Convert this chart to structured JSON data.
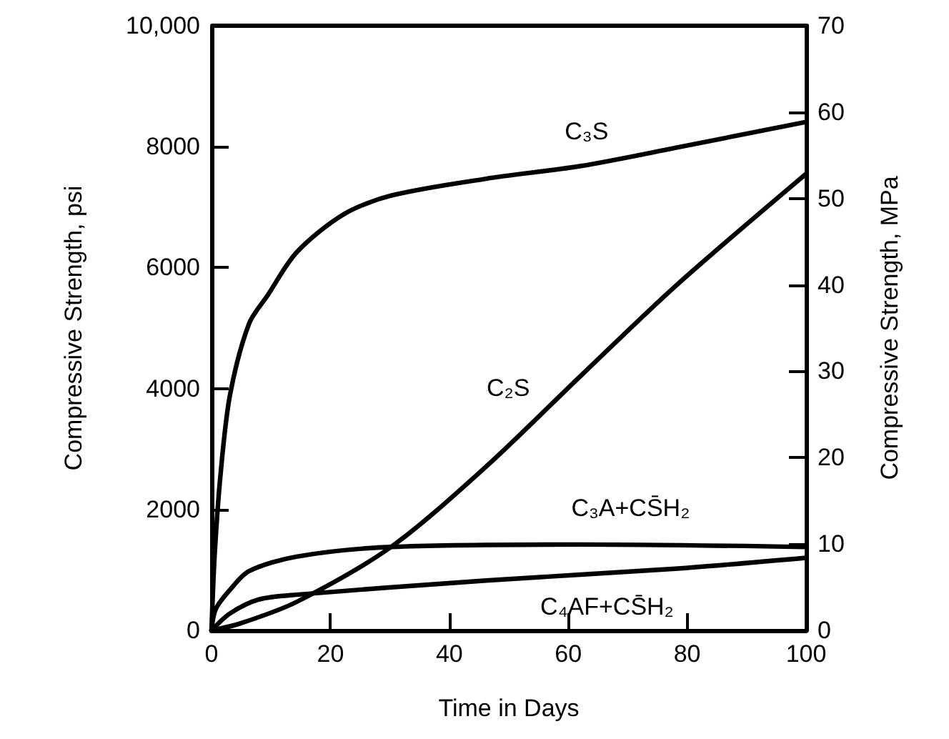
{
  "chart_data": {
    "type": "line",
    "xlabel": "Time in Days",
    "ylabel": "Compressive Strength, psi",
    "y2label": "Compressive Strength, MPa",
    "series": [
      {
        "name": "C₃S",
        "color": "#000000",
        "x": [
          0,
          0.5,
          1.5,
          3.1,
          6.3,
          9.5,
          14.3,
          22.2,
          30.2,
          46.2,
          62.1,
          78,
          100
        ],
        "values": [
          0,
          1200,
          2560,
          3890,
          5070,
          5550,
          6250,
          6880,
          7190,
          7470,
          7680,
          7980,
          8410
        ]
      },
      {
        "name": "C₂S",
        "color": "#000000",
        "x": [
          0,
          5,
          14.3,
          30.2,
          46.2,
          62.1,
          78.1,
          100
        ],
        "values": [
          0,
          120,
          470,
          1380,
          2710,
          4210,
          5700,
          7550
        ]
      },
      {
        "name": "C₃A+CS̄H₂",
        "color": "#000000",
        "x": [
          0,
          0.7,
          3.1,
          6.3,
          14.3,
          30.2,
          62,
          100
        ],
        "values": [
          0,
          350,
          670,
          980,
          1220,
          1380,
          1420,
          1380
        ]
      },
      {
        "name": "C₄AF+CS̄H₂",
        "color": "#000000",
        "x": [
          0,
          3.1,
          7.9,
          14.3,
          46.2,
          78,
          100
        ],
        "values": [
          0,
          280,
          510,
          590,
          825,
          1020,
          1200
        ]
      }
    ],
    "xlim": [
      0,
      100
    ],
    "xticks": [
      0,
      20,
      40,
      60,
      80,
      100
    ],
    "ylim": [
      0,
      10000
    ],
    "yticks": [
      0,
      2000,
      4000,
      6000,
      8000,
      {
        "value": 10000,
        "label": "10,000"
      }
    ],
    "y2lim": [
      0,
      70
    ],
    "y2ticks": [
      0,
      10,
      20,
      30,
      40,
      50,
      60,
      70
    ],
    "grid": false,
    "marker": "none",
    "line_style": "solid"
  }
}
